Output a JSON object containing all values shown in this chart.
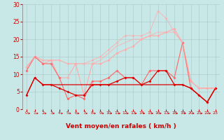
{
  "x": [
    0,
    1,
    2,
    3,
    4,
    5,
    6,
    7,
    8,
    9,
    10,
    11,
    12,
    13,
    14,
    15,
    16,
    17,
    18,
    19,
    20,
    21,
    22,
    23
  ],
  "lines": [
    {
      "y": [
        12,
        15,
        13,
        14,
        9,
        9,
        13,
        4,
        13,
        13,
        14,
        16,
        17,
        18,
        20,
        21,
        21,
        22,
        23,
        19,
        8,
        6,
        6,
        6
      ],
      "color": "#ffaaaa",
      "lw": 0.8,
      "marker": "D",
      "ms": 2.0,
      "alpha": 1.0
    },
    {
      "y": [
        12,
        15,
        14,
        14,
        14,
        13,
        13,
        13,
        14,
        15,
        17,
        19,
        21,
        21,
        21,
        22,
        28,
        26,
        22,
        19,
        8,
        6,
        6,
        6
      ],
      "color": "#ffaaaa",
      "lw": 0.8,
      "marker": "D",
      "ms": 2.0,
      "alpha": 0.7
    },
    {
      "y": [
        11,
        15,
        13,
        13,
        9,
        3,
        4,
        3,
        8,
        8,
        9,
        11,
        9,
        9,
        7,
        11,
        11,
        11,
        9,
        19,
        6,
        4,
        2,
        6
      ],
      "color": "#ff6666",
      "lw": 0.8,
      "marker": "D",
      "ms": 2.0,
      "alpha": 1.0
    },
    {
      "y": [
        4,
        9,
        7,
        7,
        6,
        5,
        4,
        4,
        7,
        7,
        7,
        8,
        9,
        9,
        7,
        8,
        11,
        11,
        7,
        7,
        6,
        4,
        2,
        6
      ],
      "color": "#dd0000",
      "lw": 0.9,
      "marker": "D",
      "ms": 2.0,
      "alpha": 1.0
    },
    {
      "y": [
        4,
        9,
        7,
        7,
        7,
        7,
        7,
        7,
        7,
        7,
        7,
        7,
        7,
        7,
        7,
        7,
        7,
        7,
        7,
        7,
        6,
        4,
        2,
        6
      ],
      "color": "#dd0000",
      "lw": 0.9,
      "marker": null,
      "ms": 0,
      "alpha": 1.0
    },
    {
      "y": [
        12,
        15,
        14,
        14,
        14,
        13,
        13,
        13,
        13,
        14,
        16,
        18,
        19,
        20,
        20,
        21,
        22,
        22,
        22,
        19,
        8,
        6,
        6,
        6
      ],
      "color": "#ffaaaa",
      "lw": 0.8,
      "marker": null,
      "ms": 0,
      "alpha": 0.7
    }
  ],
  "xlabel": "Vent moyen/en rafales ( km/h )",
  "xlim": [
    -0.5,
    23.5
  ],
  "ylim": [
    0,
    30
  ],
  "yticks": [
    0,
    5,
    10,
    15,
    20,
    25,
    30
  ],
  "xticks": [
    0,
    1,
    2,
    3,
    4,
    5,
    6,
    7,
    8,
    9,
    10,
    11,
    12,
    13,
    14,
    15,
    16,
    17,
    18,
    19,
    20,
    21,
    22,
    23
  ],
  "grid_color": "#b0c8c8",
  "bg_color": "#c8e8e8",
  "xlabel_color": "#cc0000",
  "tick_color": "#cc0000",
  "arrow_color": "#cc0000",
  "left_spine_color": "#888888"
}
